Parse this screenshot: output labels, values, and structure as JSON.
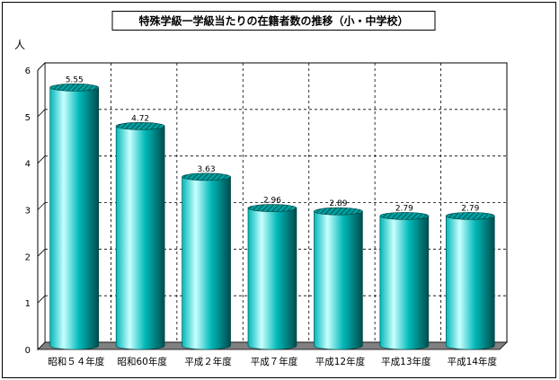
{
  "chart_data": {
    "type": "bar",
    "title": "特殊学級一学級当たりの在籍者数の推移（小・中学校）",
    "ylabel": "人",
    "xlabel": "",
    "categories": [
      "昭和５４年度",
      "昭和60年度",
      "平成２年度",
      "平成７年度",
      "平成12年度",
      "平成13年度",
      "平成14年度"
    ],
    "values": [
      5.55,
      4.72,
      3.63,
      2.96,
      2.89,
      2.79,
      2.79
    ],
    "value_labels": [
      "5.55",
      "4.72",
      "3.63",
      "2.96",
      "2.89",
      "2.79",
      "2.79"
    ],
    "ylim": [
      0,
      6
    ],
    "yticks": [
      0,
      1,
      2,
      3,
      4,
      5,
      6
    ],
    "grid": true,
    "legend": "none",
    "style": "3d-cylinder",
    "colors": {
      "bar_light": "#c8ffff",
      "bar_mid": "#00b8b8",
      "bar_dark": "#004c4c",
      "bar_top": "#008080",
      "floor": "#808080",
      "grid": "#000000"
    }
  }
}
